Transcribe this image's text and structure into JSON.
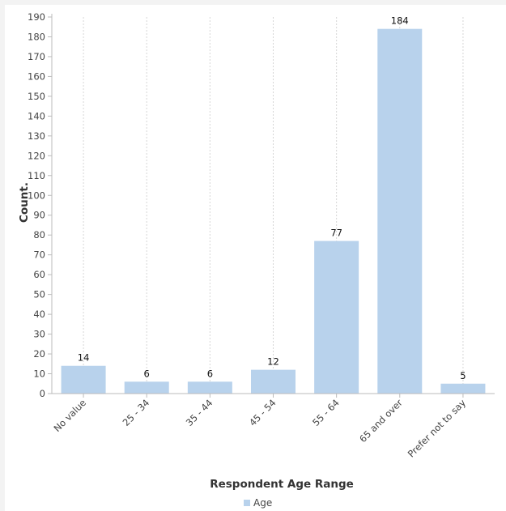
{
  "chart_data": {
    "type": "bar",
    "title": "",
    "xlabel": "Respondent Age Range",
    "ylabel": "Count.",
    "categories": [
      "No value",
      "25 - 34",
      "35 - 44",
      "45 - 54",
      "55 - 64",
      "65 and over",
      "Prefer not to say"
    ],
    "series": [
      {
        "name": "Age",
        "values": [
          14,
          6,
          6,
          12,
          77,
          184,
          5
        ],
        "color": "#b8d2ec"
      }
    ],
    "ylim": [
      0,
      190
    ],
    "ytick_step": 10,
    "data_labels": true,
    "grid": "vertical-dotted",
    "legend": "bottom-center"
  }
}
